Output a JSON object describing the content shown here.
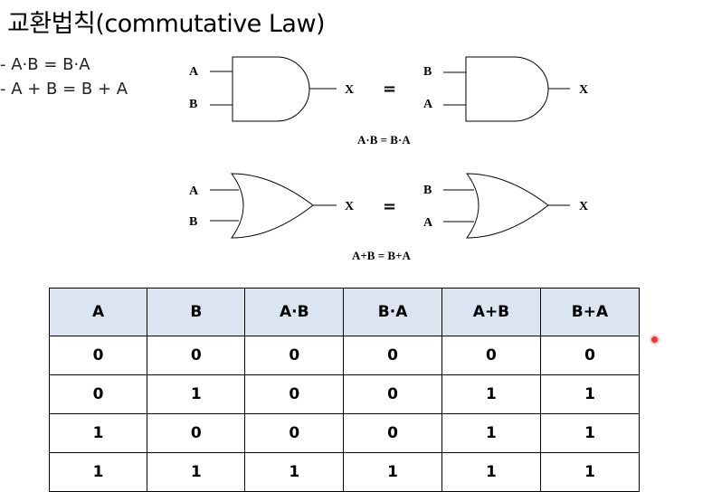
{
  "title": "교환법칙(commutative Law)",
  "laws": [
    "- A·B = B·A",
    "- A + B = B + A"
  ],
  "and_diagram": {
    "left_inputs": [
      "A",
      "B"
    ],
    "right_inputs": [
      "B",
      "A"
    ],
    "output": "X",
    "equals": "=",
    "caption": "A·B = B·A"
  },
  "or_diagram": {
    "left_inputs": [
      "A",
      "B"
    ],
    "right_inputs": [
      "B",
      "A"
    ],
    "output": "X",
    "equals": "=",
    "caption": "A+B = B+A"
  },
  "truth_table": {
    "headers": [
      "A",
      "B",
      "A·B",
      "B·A",
      "A+B",
      "B+A"
    ],
    "rows": [
      [
        "0",
        "0",
        "0",
        "0",
        "0",
        "0"
      ],
      [
        "0",
        "1",
        "0",
        "0",
        "1",
        "1"
      ],
      [
        "1",
        "0",
        "0",
        "0",
        "1",
        "1"
      ],
      [
        "1",
        "1",
        "1",
        "1",
        "1",
        "1"
      ]
    ]
  },
  "colors": {
    "header_bg": "#dbe5f1",
    "pointer_dot": "#e53935"
  }
}
